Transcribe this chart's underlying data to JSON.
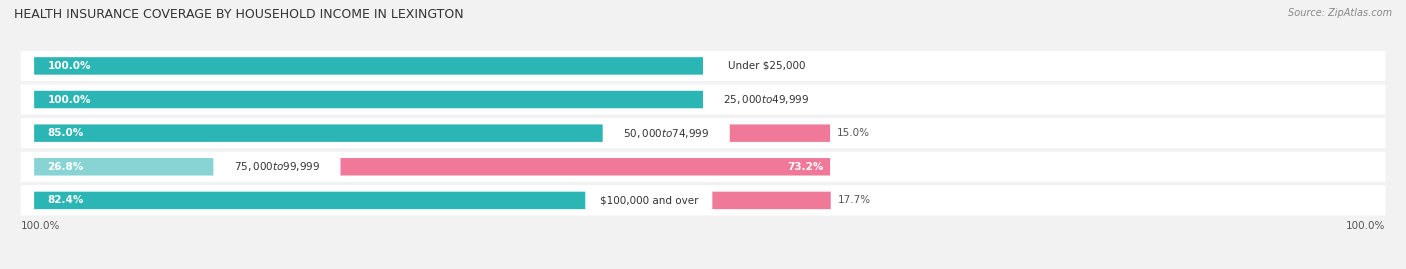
{
  "title": "HEALTH INSURANCE COVERAGE BY HOUSEHOLD INCOME IN LEXINGTON",
  "source": "Source: ZipAtlas.com",
  "categories": [
    "Under $25,000",
    "$25,000 to $49,999",
    "$50,000 to $74,999",
    "$75,000 to $99,999",
    "$100,000 and over"
  ],
  "with_coverage": [
    100.0,
    100.0,
    85.0,
    26.8,
    82.4
  ],
  "without_coverage": [
    0.0,
    0.0,
    15.0,
    73.2,
    17.7
  ],
  "color_coverage": "#2cb5b5",
  "color_no_coverage": "#f07898",
  "color_coverage_light": "#88d4d4",
  "color_no_coverage_light": "#f9b8cc",
  "bg_color": "#f2f2f2",
  "row_bg_color": "#ffffff",
  "cov_label_color_inside": "#ffffff",
  "cov_label_color_outside": "#555555",
  "nocov_label_color": "#555555",
  "label_fontsize": 7.5,
  "title_fontsize": 9,
  "legend_fontsize": 8,
  "axis_label_fontsize": 7.5,
  "cat_label_fontsize": 7.5
}
